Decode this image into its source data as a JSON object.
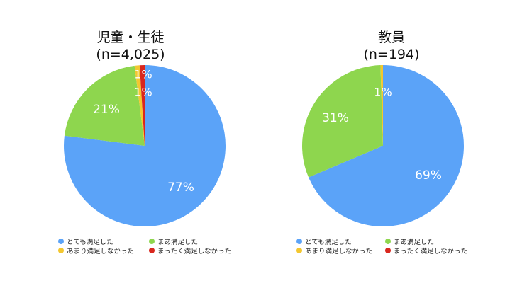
{
  "chart_data": [
    {
      "type": "pie",
      "title": "児童・生徒",
      "subtitle": "(n=4,025)",
      "categories": [
        "とても満足した",
        "まあ満足した",
        "あまり満足しなかった",
        "まったく満足しなかった"
      ],
      "values": [
        77,
        21,
        1,
        1
      ],
      "data_labels": [
        "77%",
        "21%",
        "1%",
        "1%"
      ],
      "colors": [
        "#5ba3f8",
        "#8ed64e",
        "#f3c730",
        "#d9271e"
      ],
      "legend_position": "bottom"
    },
    {
      "type": "pie",
      "title": "教員",
      "subtitle": "(n=194)",
      "categories": [
        "とても満足した",
        "まあ満足した",
        "あまり満足しなかった",
        "まったく満足しなかった"
      ],
      "values": [
        68.6,
        30.9,
        0.5,
        0
      ],
      "data_labels": [
        "69%",
        "31%",
        "1%",
        ""
      ],
      "colors": [
        "#5ba3f8",
        "#8ed64e",
        "#f3c730",
        "#d9271e"
      ],
      "legend_position": "bottom"
    }
  ]
}
